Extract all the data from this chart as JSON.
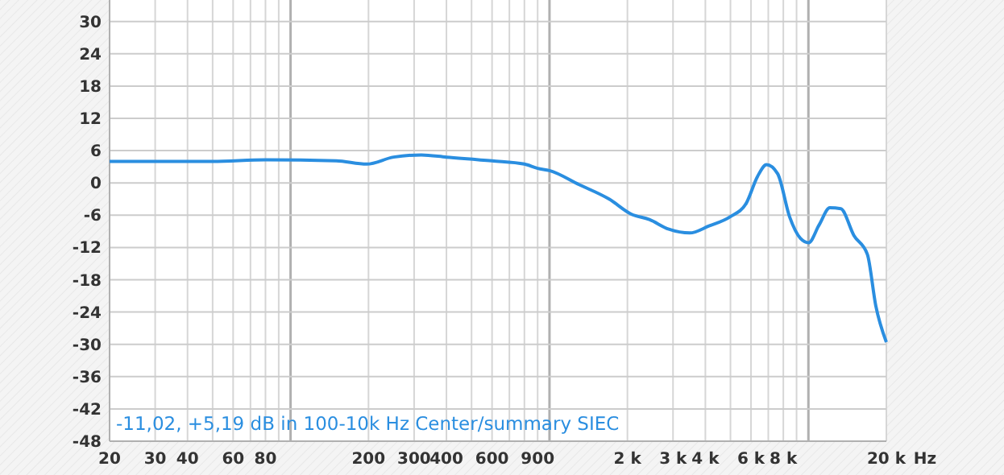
{
  "chart_data": {
    "type": "line",
    "xlabel": "Hz",
    "log": "x",
    "grid": true,
    "marker": "none",
    "line_style": "solid",
    "xlim": [
      20,
      20000
    ],
    "ylim": [
      -48,
      34
    ],
    "xticks": [
      20,
      30,
      40,
      {
        "value": 50,
        "label": null
      },
      60,
      {
        "value": 70,
        "label": null
      },
      80,
      {
        "value": 90,
        "label": null
      },
      {
        "value": 100,
        "label": null
      },
      200,
      300,
      400,
      {
        "value": 500,
        "label": null
      },
      600,
      {
        "value": 700,
        "label": null
      },
      {
        "value": 800,
        "label": null
      },
      900,
      {
        "value": 1000,
        "label": null
      },
      {
        "value": 2000,
        "label": "2 k"
      },
      {
        "value": 3000,
        "label": "3 k"
      },
      {
        "value": 4000,
        "label": "4 k"
      },
      {
        "value": 5000,
        "label": null
      },
      {
        "value": 6000,
        "label": "6 k"
      },
      {
        "value": 7000,
        "label": null
      },
      {
        "value": 8000,
        "label": "8 k"
      },
      {
        "value": 9000,
        "label": null
      },
      {
        "value": 10000,
        "label": null
      },
      {
        "value": 20000,
        "label": "20 k"
      }
    ],
    "yticks": [
      -48,
      -42,
      -36,
      -30,
      -24,
      -18,
      -12,
      -6,
      0,
      6,
      12,
      18,
      24,
      30
    ],
    "annotations": [
      "-11,02, +5,19 dB in 100-10k Hz Center/summary SIEC"
    ],
    "series": [
      {
        "color": "#2a8ee0",
        "x": [
          20,
          50,
          80,
          150,
          197,
          250,
          320,
          400,
          600,
          800,
          900,
          1000,
          1300,
          1700,
          2070,
          2430,
          2890,
          3480,
          4130,
          4980,
          5750,
          6360,
          6890,
          7610,
          8460,
          9320,
          10020,
          11000,
          12100,
          13340,
          15000,
          16900,
          18200,
          20000
        ],
        "values": [
          4.0,
          4.0,
          4.3,
          4.1,
          3.5,
          4.8,
          5.2,
          4.8,
          4.1,
          3.5,
          2.7,
          2.3,
          -0.3,
          -3.0,
          -5.8,
          -6.8,
          -8.6,
          -9.3,
          -8.0,
          -6.3,
          -3.8,
          1.2,
          3.4,
          1.7,
          -6.3,
          -10.3,
          -11.1,
          -7.8,
          -4.6,
          -4.8,
          -9.8,
          -13.3,
          -22.8,
          -29.6
        ]
      }
    ]
  }
}
